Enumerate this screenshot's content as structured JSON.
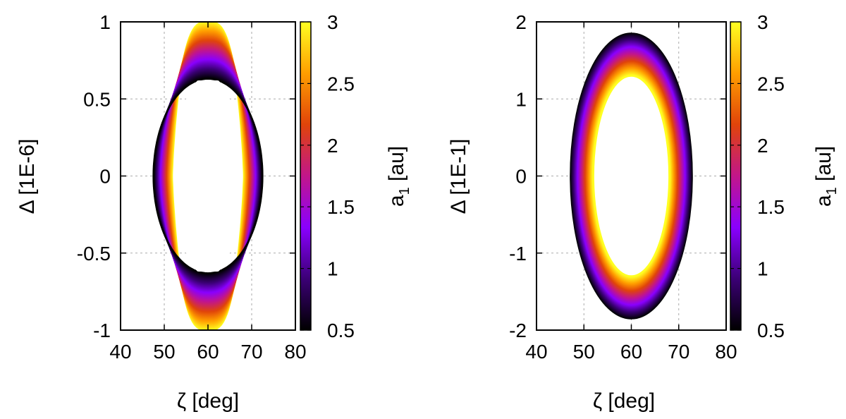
{
  "chart_data": [
    {
      "type": "scatter",
      "description_kind": "colored ring of trajectories",
      "xlabel": "ζ [deg]",
      "ylabel": "Δ [1E-6]",
      "xlim": [
        40,
        80
      ],
      "ylim": [
        -1,
        1
      ],
      "xticks": [
        40,
        50,
        60,
        70,
        80
      ],
      "yticks": [
        -1,
        -0.5,
        0,
        0.5,
        1
      ],
      "xtick_labels": [
        "40",
        "50",
        "60",
        "70",
        "80"
      ],
      "ytick_labels": [
        "-1",
        "-0.5",
        "0",
        "0.5",
        "1"
      ],
      "grid": true,
      "colorbar": {
        "label": "a1 [au]",
        "label_main": "a",
        "label_sub": "1",
        "label_unit": " [au]",
        "range": [
          0.5,
          3
        ],
        "ticks": [
          0.5,
          1,
          1.5,
          2,
          2.5,
          3
        ],
        "tick_labels": [
          "0.5",
          "1",
          "1.5",
          "2",
          "2.5",
          "3"
        ],
        "colormap": [
          "#000000",
          "#3b0075",
          "#8a00ff",
          "#c2168a",
          "#e0440a",
          "#ff9e00",
          "#ffff22"
        ]
      },
      "series": [
        {
          "name": "a1 = 3.0",
          "a1": 3.0,
          "center_x": 60,
          "half_width_x": 8.2,
          "peak_y": 1.0,
          "inner_lobe": true
        },
        {
          "name": "a1 = 0.5",
          "a1": 0.5,
          "center_x": 60,
          "half_width_x": 12.5,
          "peak_y": 0.63,
          "inner_lobe": true
        }
      ]
    },
    {
      "type": "scatter",
      "description_kind": "colored ring of trajectories",
      "xlabel": "ζ [deg]",
      "ylabel": "Δ [1E-1]",
      "xlim": [
        40,
        80
      ],
      "ylim": [
        -2,
        2
      ],
      "xticks": [
        40,
        50,
        60,
        70,
        80
      ],
      "yticks": [
        -2,
        -1,
        0,
        1,
        2
      ],
      "xtick_labels": [
        "40",
        "50",
        "60",
        "70",
        "80"
      ],
      "ytick_labels": [
        "-2",
        "-1",
        "0",
        "1",
        "2"
      ],
      "grid": true,
      "colorbar": {
        "label": "a1 [au]",
        "label_main": "a",
        "label_sub": "1",
        "label_unit": " [au]",
        "range": [
          0.5,
          3
        ],
        "ticks": [
          0.5,
          1,
          1.5,
          2,
          2.5,
          3
        ],
        "tick_labels": [
          "0.5",
          "1",
          "1.5",
          "2",
          "2.5",
          "3"
        ],
        "colormap": [
          "#000000",
          "#3b0075",
          "#8a00ff",
          "#c2168a",
          "#e0440a",
          "#ff9e00",
          "#ffff22"
        ]
      },
      "series": [
        {
          "name": "a1 = 0.5",
          "a1": 0.5,
          "center_x": 60,
          "half_width_x": 12.8,
          "peak_y": 1.85
        },
        {
          "name": "a1 = 3.0",
          "a1": 3.0,
          "center_x": 60,
          "half_width_x": 8.0,
          "peak_y": 1.3
        }
      ]
    }
  ]
}
